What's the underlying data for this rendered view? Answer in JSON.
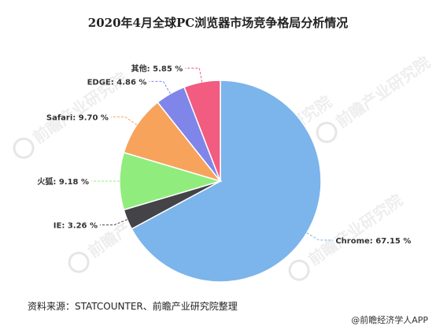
{
  "chart_data": {
    "type": "pie",
    "title": "2020年4月全球PC浏览器市场竞争格局分析情况",
    "slices": [
      {
        "name": "Chrome",
        "value": 67.15,
        "label": "Chrome: 67.15 %",
        "color": "#7cb4ec"
      },
      {
        "name": "IE",
        "value": 3.26,
        "label": "IE: 3.26 %",
        "color": "#434348"
      },
      {
        "name": "火狐",
        "value": 9.18,
        "label": "火狐: 9.18 %",
        "color": "#90ed7d"
      },
      {
        "name": "Safari",
        "value": 9.7,
        "label": "Safari: 9.70 %",
        "color": "#f7a35c"
      },
      {
        "name": "EDGE",
        "value": 4.86,
        "label": "EDGE: 4.86 %",
        "color": "#8085e9"
      },
      {
        "name": "其他",
        "value": 5.85,
        "label": "其他: 5.85 %",
        "color": "#f15c80"
      }
    ],
    "start_angle_deg": 0,
    "direction": "clockwise",
    "legend": "none"
  },
  "footer": {
    "source": "资料来源：STATCOUNTER、前瞻产业研究院整理",
    "app_credit": "@前瞻经济学人APP"
  },
  "watermark": {
    "brand": "前瞻产业研究院"
  }
}
